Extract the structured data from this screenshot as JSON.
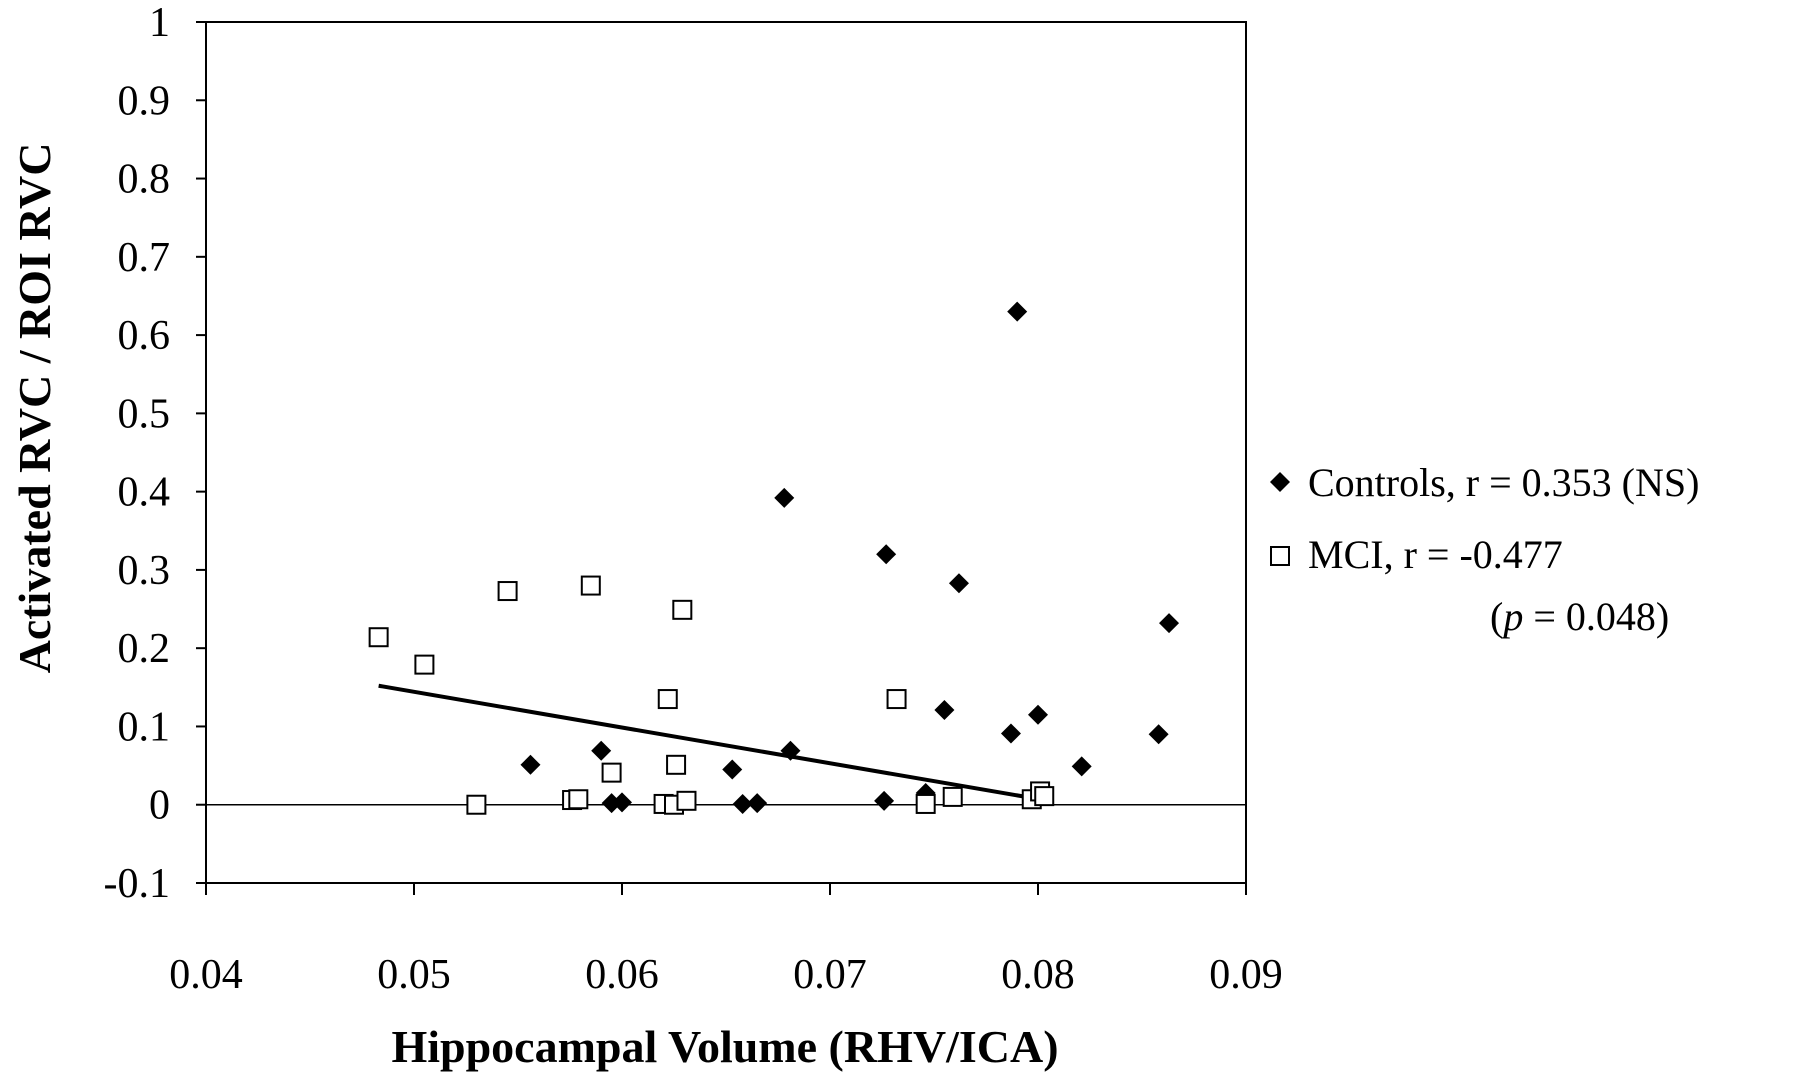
{
  "chart_data": {
    "type": "scatter",
    "xlabel": "Hippocampal Volume (RHV/ICA)",
    "ylabel": "Activated RVC / ROI RVC",
    "xlim": [
      0.04,
      0.09
    ],
    "ylim": [
      -0.1,
      1
    ],
    "x_ticks": [
      "0.04",
      "0.05",
      "0.06",
      "0.07",
      "0.08",
      "0.09"
    ],
    "y_ticks": [
      "-0.1",
      "0",
      "0.1",
      "0.2",
      "0.3",
      "0.4",
      "0.5",
      "0.6",
      "0.7",
      "0.8",
      "0.9",
      "1"
    ],
    "grid": false,
    "legend_position": "right",
    "series": [
      {
        "name": "Controls, r = 0.353 (NS)",
        "marker": "filled-diamond",
        "color": "#000000",
        "points": [
          [
            0.0556,
            0.051
          ],
          [
            0.059,
            0.069
          ],
          [
            0.0595,
            0.002
          ],
          [
            0.06,
            0.003
          ],
          [
            0.0653,
            0.045
          ],
          [
            0.0658,
            0.001
          ],
          [
            0.0665,
            0.002
          ],
          [
            0.0678,
            0.392
          ],
          [
            0.0681,
            0.069
          ],
          [
            0.0726,
            0.005
          ],
          [
            0.0727,
            0.32
          ],
          [
            0.0746,
            0.015
          ],
          [
            0.0755,
            0.121
          ],
          [
            0.0762,
            0.283
          ],
          [
            0.0787,
            0.091
          ],
          [
            0.079,
            0.63
          ],
          [
            0.08,
            0.115
          ],
          [
            0.0821,
            0.049
          ],
          [
            0.0858,
            0.09
          ],
          [
            0.0863,
            0.232
          ]
        ]
      },
      {
        "name": "MCI, r = -0.477",
        "name_line2_prefix": "(",
        "name_line2_italic": "p",
        "name_line2_suffix": " = 0.048)",
        "marker": "open-square",
        "color": "#000000",
        "points": [
          [
            0.0483,
            0.214
          ],
          [
            0.0505,
            0.179
          ],
          [
            0.053,
            0.0
          ],
          [
            0.0545,
            0.273
          ],
          [
            0.0576,
            0.006
          ],
          [
            0.0579,
            0.007
          ],
          [
            0.0585,
            0.28
          ],
          [
            0.0595,
            0.041
          ],
          [
            0.062,
            0.001
          ],
          [
            0.0622,
            0.135
          ],
          [
            0.0625,
            0.0
          ],
          [
            0.0626,
            0.051
          ],
          [
            0.0629,
            0.249
          ],
          [
            0.0631,
            0.005
          ],
          [
            0.0732,
            0.135
          ],
          [
            0.0746,
            0.001
          ],
          [
            0.0759,
            0.01
          ],
          [
            0.0797,
            0.007
          ],
          [
            0.0801,
            0.017
          ],
          [
            0.0803,
            0.011
          ]
        ]
      }
    ],
    "trendline": {
      "series": "MCI, r = -0.477",
      "x": [
        0.0483,
        0.0803
      ],
      "y": [
        0.152,
        0.006
      ]
    }
  }
}
